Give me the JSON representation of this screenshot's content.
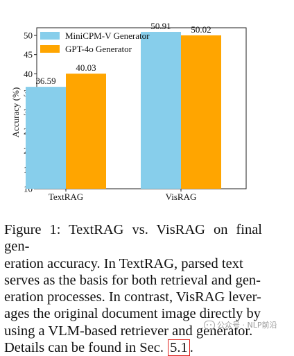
{
  "chart_data": {
    "type": "bar",
    "categories": [
      "TextRAG",
      "VisRAG"
    ],
    "series": [
      {
        "name": "MiniCPM-V Generator",
        "values": [
          36.59,
          50.91
        ],
        "color": "#87ceeb"
      },
      {
        "name": "GPT-4o Generator",
        "values": [
          40.03,
          50.02
        ],
        "color": "#ffa500"
      }
    ],
    "data_labels": [
      [
        "36.59",
        "50.91"
      ],
      [
        "40.03",
        "50.02"
      ]
    ],
    "ylabel": "Accuracy (%)",
    "xlabel": "",
    "ylim": [
      10,
      52
    ],
    "yticks": [
      10,
      15,
      20,
      25,
      30,
      35,
      40,
      45,
      50
    ],
    "legend_position": "top-left",
    "grid": false
  },
  "caption": {
    "lines": [
      "Figure 1: TextRAG vs. VisRAG on final gen-",
      "eration accuracy.  In TextRAG, parsed text",
      "serves as the basis for both retrieval and gen-",
      "eration processes. In contrast, VisRAG lever-",
      "ages the original document image directly by",
      "using a VLM-based retriever and generator."
    ],
    "last_line_text": "Details can be found in Sec.",
    "section_ref": "5.1",
    "last_line_end": "."
  },
  "watermark": {
    "text": "公众号 · NLP前沿",
    "icon": "wechat-icon"
  }
}
